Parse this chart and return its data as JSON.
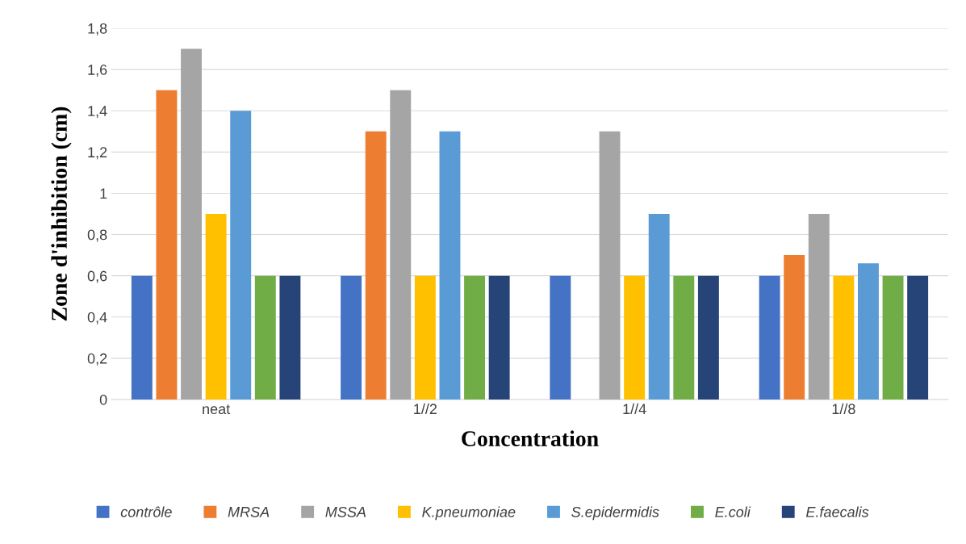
{
  "chart_data": {
    "type": "bar",
    "xlabel": "Concentration",
    "ylabel": "Zone d'inhibition (cm)",
    "categories": [
      "neat",
      "1//2",
      "1//4",
      "1//8"
    ],
    "series": [
      {
        "name": "contrôle",
        "color": "#4472c4",
        "values": [
          0.6,
          0.6,
          0.6,
          0.6
        ]
      },
      {
        "name": "MRSA",
        "color": "#ed7d31",
        "values": [
          1.5,
          1.3,
          null,
          0.7
        ]
      },
      {
        "name": "MSSA",
        "color": "#a5a5a5",
        "values": [
          1.7,
          1.5,
          1.3,
          0.9
        ]
      },
      {
        "name": "K.pneumoniae",
        "color": "#ffc000",
        "values": [
          0.9,
          0.6,
          0.6,
          0.6
        ]
      },
      {
        "name": "S.epidermidis",
        "color": "#5b9bd5",
        "values": [
          1.4,
          1.3,
          0.9,
          0.66
        ]
      },
      {
        "name": "E.coli",
        "color": "#70ad47",
        "values": [
          0.6,
          0.6,
          0.6,
          0.6
        ]
      },
      {
        "name": "E.faecalis",
        "color": "#264478",
        "values": [
          0.6,
          0.6,
          0.6,
          0.6
        ]
      }
    ],
    "ylim": [
      0,
      1.8
    ],
    "yticks": [
      0,
      {
        "value": 0.2,
        "label": "0,2"
      },
      {
        "value": 0.4,
        "label": "0,4"
      },
      {
        "value": 0.6,
        "label": "0,6"
      },
      {
        "value": 0.8,
        "label": "0,8"
      },
      1,
      {
        "value": 1.2,
        "label": "1,2"
      },
      {
        "value": 1.4,
        "label": "1,4"
      },
      {
        "value": 1.6,
        "label": "1,6"
      },
      {
        "value": 1.8,
        "label": "1,8"
      }
    ],
    "grid": "y",
    "legend": "bottom"
  }
}
